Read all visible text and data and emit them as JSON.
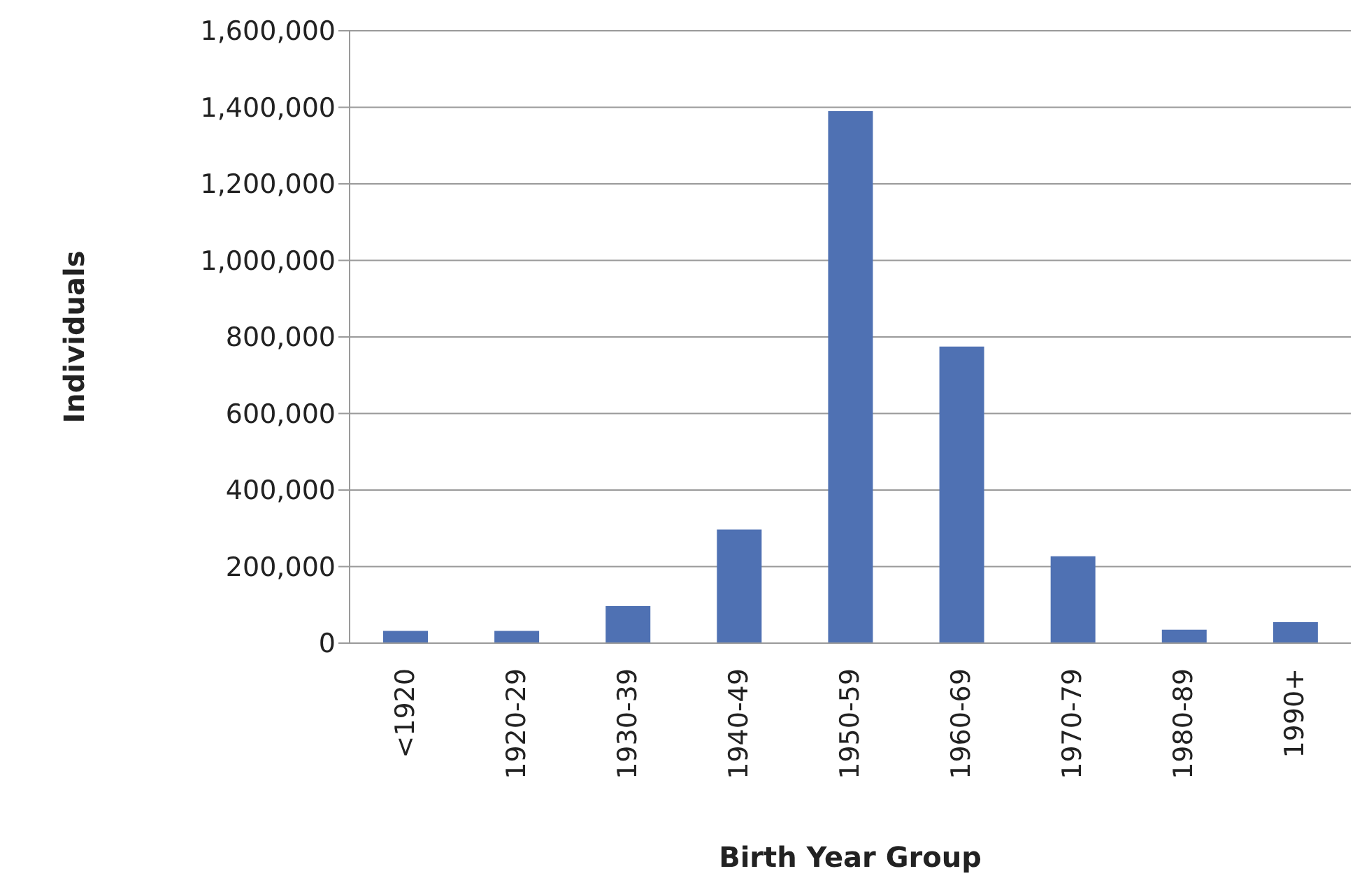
{
  "chart_data": {
    "type": "bar",
    "xlabel": "Birth Year Group",
    "ylabel": "Individuals",
    "categories": [
      "<1920",
      "1920-29",
      "1930-39",
      "1940-49",
      "1950-59",
      "1960-69",
      "1970-79",
      "1980-89",
      "1990+"
    ],
    "values": [
      32000,
      32000,
      97000,
      297000,
      1390000,
      775000,
      227000,
      35000,
      55000
    ],
    "color": "#4f71b3",
    "ylim": [
      0,
      1600000
    ],
    "yticks": [
      0,
      {
        "value": 200000,
        "label": "200,000"
      },
      {
        "value": 400000,
        "label": "400,000"
      },
      {
        "value": 600000,
        "label": "600,000"
      },
      {
        "value": 800000,
        "label": "800,000"
      },
      {
        "value": 1000000,
        "label": "1,000,000"
      },
      {
        "value": 1200000,
        "label": "1,200,000"
      },
      {
        "value": 1400000,
        "label": "1,400,000"
      },
      {
        "value": 1600000,
        "label": "1,600,000"
      }
    ],
    "grid": "y",
    "legend": false
  }
}
